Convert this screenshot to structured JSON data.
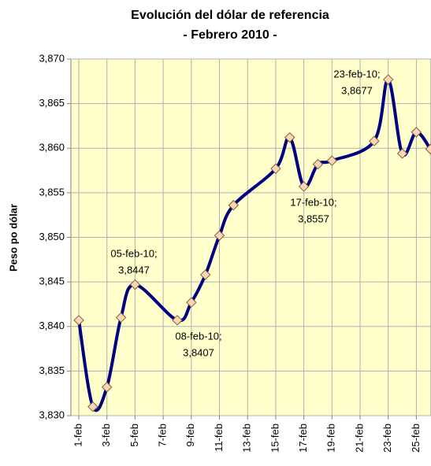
{
  "chart_data": {
    "type": "line",
    "title": "Evolución del dólar de referencia",
    "subtitle": "- Febrero 2010 -",
    "y_label": "Peso po dólar",
    "x": [
      "1-feb",
      "2-feb",
      "3-feb",
      "4-feb",
      "5-feb",
      "8-feb",
      "9-feb",
      "10-feb",
      "11-feb",
      "12-feb",
      "15-feb",
      "16-feb",
      "17-feb",
      "18-feb",
      "19-feb",
      "22-feb",
      "23-feb",
      "24-feb",
      "25-feb",
      "26-feb"
    ],
    "series": [
      {
        "name": "Dólar de referencia",
        "color": "#000080",
        "marker_color": "#fcd5b4",
        "values": [
          3.8407,
          3.831,
          3.8332,
          3.841,
          3.8447,
          3.8407,
          3.8427,
          3.8458,
          3.8502,
          3.8536,
          3.8577,
          3.8612,
          3.8557,
          3.8582,
          3.8586,
          3.8608,
          3.8677,
          3.8594,
          3.8618,
          3.8599
        ]
      }
    ],
    "xticks": [
      "1-feb",
      "3-feb",
      "5-feb",
      "7-feb",
      "9-feb",
      "11-feb",
      "13-feb",
      "15-feb",
      "17-feb",
      "19-feb",
      "21-feb",
      "23-feb",
      "25-feb"
    ],
    "ylim": [
      3.83,
      3.87
    ],
    "yticks": [
      {
        "value": 3.83,
        "label": "3,830"
      },
      {
        "value": 3.835,
        "label": "3,835"
      },
      {
        "value": 3.84,
        "label": "3,840"
      },
      {
        "value": 3.845,
        "label": "3,845"
      },
      {
        "value": 3.85,
        "label": "3,850"
      },
      {
        "value": 3.855,
        "label": "3,855"
      },
      {
        "value": 3.86,
        "label": "3,860"
      },
      {
        "value": 3.865,
        "label": "3,865"
      },
      {
        "value": 3.87,
        "label": "3,870"
      }
    ],
    "grid": true,
    "plot_background": "#ffffcc",
    "annotations": [
      {
        "lines": [
          "05-feb-10;",
          "3,8447"
        ]
      },
      {
        "lines": [
          "08-feb-10;",
          "3,8407"
        ]
      },
      {
        "lines": [
          "17-feb-10;",
          "3,8557"
        ]
      },
      {
        "lines": [
          "23-feb-10;",
          "3,8677"
        ]
      }
    ]
  }
}
